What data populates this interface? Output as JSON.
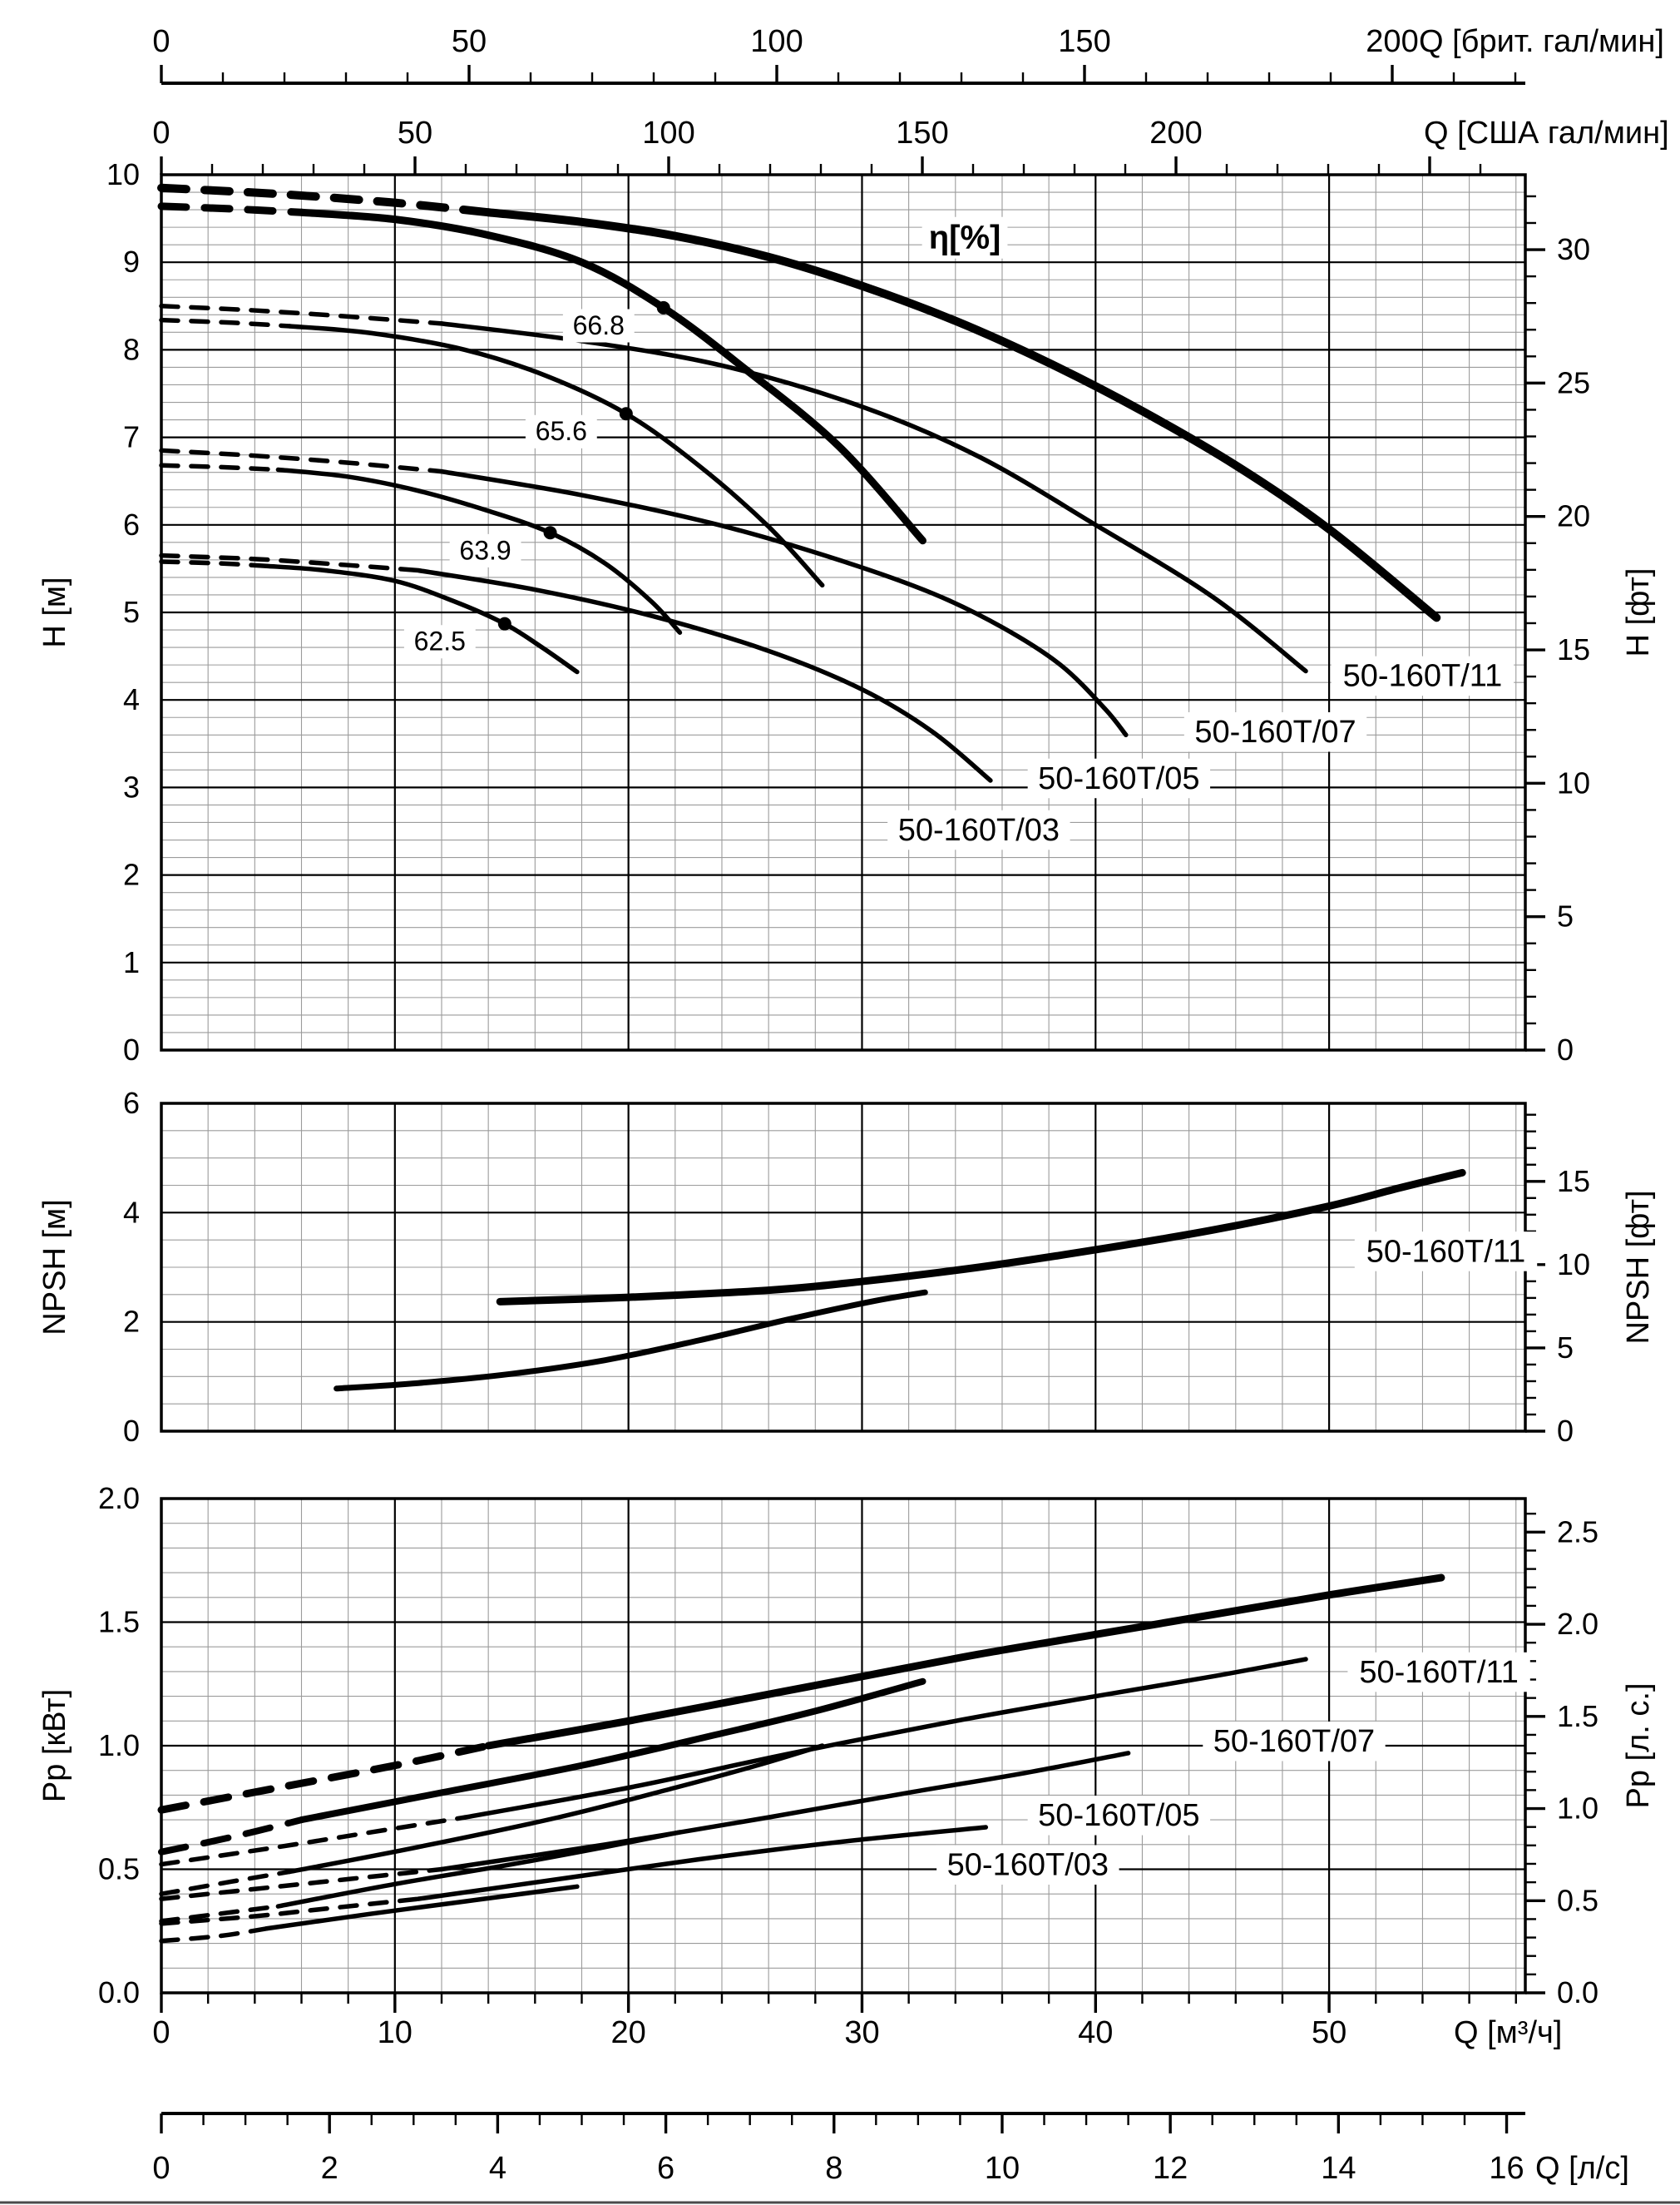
{
  "colors": {
    "curve": "#000000",
    "grid_minor": "#9b9b9b",
    "grid_major": "#000000",
    "frame": "#000000",
    "label_bg": "#ffffff"
  },
  "top_axes": {
    "imp_gpm": {
      "label": "Q [брит. гал/мин]",
      "tick_labels": [
        0,
        50,
        100,
        150,
        200
      ],
      "minor_step": 10
    },
    "us_gpm": {
      "label": "Q [США гал/мин]",
      "tick_labels": [
        0,
        50,
        100,
        150,
        200
      ],
      "minor_step": 10
    }
  },
  "bottom_axes": {
    "m3h": {
      "label": "Q [м³/ч]",
      "tick_labels": [
        0,
        10,
        20,
        30,
        40,
        50
      ],
      "minor_step": 2
    },
    "ls": {
      "label": "Q [л/с]",
      "tick_labels": [
        0,
        2,
        4,
        6,
        8,
        10,
        12,
        14,
        16
      ],
      "minor_step": 0.5
    }
  },
  "chart_data": [
    {
      "id": "head",
      "type": "line",
      "title": "",
      "xlabel": "Q [м³/ч]",
      "ylabel_left": "H [м]",
      "ylabel_right": "H [фт]",
      "xlim": [
        0,
        58.4
      ],
      "ylim": [
        0,
        10
      ],
      "yticks_left": [
        0,
        1,
        2,
        3,
        4,
        5,
        6,
        7,
        8,
        9,
        10
      ],
      "yticks_right_ft": [
        0,
        5,
        10,
        15,
        20,
        25,
        30
      ],
      "grid": {
        "x_minor": 2,
        "x_major": 10,
        "y_minor": 0.2,
        "y_major": 1
      },
      "eta_note": {
        "text": "η[%]",
        "q": 34.4,
        "v": 9.28
      },
      "series": [
        {
          "id": "50-160T/11-nominal",
          "width": 10,
          "dash": [
            [
              0,
              9.85
            ],
            [
              5,
              9.78
            ],
            [
              10,
              9.68
            ],
            [
              14,
              9.57
            ]
          ],
          "solid": [
            [
              14,
              9.57
            ],
            [
              18,
              9.46
            ],
            [
              22,
              9.3
            ],
            [
              26,
              9.06
            ],
            [
              30,
              8.73
            ],
            [
              34,
              8.33
            ],
            [
              38,
              7.85
            ],
            [
              42,
              7.3
            ],
            [
              46,
              6.68
            ],
            [
              50,
              5.95
            ],
            [
              54.6,
              4.94
            ]
          ],
          "label": {
            "text": "50-160T/11",
            "q": 54.0,
            "v": 4.28
          }
        },
        {
          "id": "50-160T/11-duty",
          "width": 9,
          "dash": [
            [
              0,
              9.64
            ],
            [
              3,
              9.61
            ],
            [
              6,
              9.57
            ]
          ],
          "solid": [
            [
              6,
              9.57
            ],
            [
              10,
              9.49
            ],
            [
              14,
              9.31
            ],
            [
              18,
              9.0
            ],
            [
              21.5,
              8.48
            ],
            [
              25,
              7.78
            ],
            [
              29,
              6.9
            ],
            [
              32.6,
              5.82
            ]
          ],
          "bep": {
            "q": 21.5,
            "v": 8.48,
            "value": "66.8"
          }
        },
        {
          "id": "50-160T/07-nominal",
          "width": 5.5,
          "dash": [
            [
              0,
              8.5
            ],
            [
              4,
              8.45
            ],
            [
              8,
              8.38
            ],
            [
              12,
              8.3
            ]
          ],
          "solid": [
            [
              12,
              8.3
            ],
            [
              18,
              8.1
            ],
            [
              24,
              7.82
            ],
            [
              30,
              7.35
            ],
            [
              35,
              6.78
            ],
            [
              40,
              6.0
            ],
            [
              45,
              5.18
            ],
            [
              49,
              4.33
            ]
          ],
          "label": {
            "text": "50-160T/07",
            "q": 47.7,
            "v": 3.64
          }
        },
        {
          "id": "50-160T/07-duty",
          "width": 5.5,
          "dash": [
            [
              0,
              8.34
            ],
            [
              3,
              8.31
            ],
            [
              5.5,
              8.27
            ]
          ],
          "solid": [
            [
              5.5,
              8.27
            ],
            [
              9,
              8.19
            ],
            [
              13,
              8.0
            ],
            [
              16.5,
              7.7
            ],
            [
              19.9,
              7.27
            ],
            [
              23,
              6.68
            ],
            [
              26,
              5.98
            ],
            [
              28.3,
              5.31
            ]
          ],
          "bep": {
            "q": 19.9,
            "v": 7.27,
            "value": "65.6"
          }
        },
        {
          "id": "50-160T/05-nominal",
          "width": 5.5,
          "dash": [
            [
              0,
              6.85
            ],
            [
              4,
              6.79
            ],
            [
              8,
              6.71
            ],
            [
              12,
              6.61
            ]
          ],
          "solid": [
            [
              12,
              6.61
            ],
            [
              18,
              6.34
            ],
            [
              24,
              5.99
            ],
            [
              29,
              5.6
            ],
            [
              33,
              5.22
            ],
            [
              36,
              4.83
            ],
            [
              38.5,
              4.4
            ],
            [
              40.4,
              3.9
            ],
            [
              41.3,
              3.6
            ]
          ],
          "label": {
            "text": "50-160T/05",
            "q": 41.0,
            "v": 3.11
          }
        },
        {
          "id": "50-160T/05-duty",
          "width": 5.5,
          "dash": [
            [
              0,
              6.68
            ],
            [
              2.5,
              6.66
            ],
            [
              5,
              6.63
            ]
          ],
          "solid": [
            [
              5,
              6.63
            ],
            [
              8,
              6.55
            ],
            [
              11,
              6.39
            ],
            [
              14,
              6.16
            ],
            [
              16.65,
              5.91
            ],
            [
              19,
              5.56
            ],
            [
              21,
              5.12
            ],
            [
              22.2,
              4.77
            ]
          ],
          "bep": {
            "q": 16.65,
            "v": 5.91,
            "value": "63.9"
          }
        },
        {
          "id": "50-160T/03-nominal",
          "width": 5.5,
          "dash": [
            [
              0,
              5.65
            ],
            [
              4,
              5.61
            ],
            [
              8,
              5.54
            ],
            [
              11,
              5.48
            ]
          ],
          "solid": [
            [
              11,
              5.48
            ],
            [
              16,
              5.26
            ],
            [
              21,
              4.96
            ],
            [
              26,
              4.56
            ],
            [
              30,
              4.12
            ],
            [
              33,
              3.64
            ],
            [
              35.5,
              3.08
            ]
          ],
          "label": {
            "text": "50-160T/03",
            "q": 35.0,
            "v": 2.52
          }
        },
        {
          "id": "50-160T/03-duty",
          "width": 5.5,
          "dash": [
            [
              0,
              5.58
            ],
            [
              2.5,
              5.56
            ],
            [
              4.5,
              5.53
            ]
          ],
          "solid": [
            [
              4.5,
              5.53
            ],
            [
              7,
              5.48
            ],
            [
              10,
              5.36
            ],
            [
              12.5,
              5.13
            ],
            [
              14.7,
              4.87
            ],
            [
              16.3,
              4.6
            ],
            [
              17.8,
              4.32
            ]
          ],
          "bep": {
            "q": 14.7,
            "v": 4.87,
            "value": "62.5"
          }
        }
      ]
    },
    {
      "id": "npsh",
      "type": "line",
      "title": "",
      "xlabel": "Q [м³/ч]",
      "ylabel_left": "NPSH [м]",
      "ylabel_right": "NPSH [фт]",
      "xlim": [
        0,
        58.4
      ],
      "ylim": [
        0,
        6
      ],
      "yticks_left": [
        0,
        2,
        4,
        6
      ],
      "yticks_right_ft": [
        0,
        5,
        10,
        15
      ],
      "grid": {
        "x_minor": 2,
        "x_major": 10,
        "y_minor": 0.5,
        "y_major": 2
      },
      "series": [
        {
          "id": "50-160T/11-npsh",
          "width": 9,
          "solid": [
            [
              14.5,
              2.37
            ],
            [
              20,
              2.45
            ],
            [
              26,
              2.58
            ],
            [
              30,
              2.74
            ],
            [
              35,
              3.0
            ],
            [
              40,
              3.32
            ],
            [
              45,
              3.68
            ],
            [
              50,
              4.12
            ],
            [
              53,
              4.45
            ],
            [
              55.7,
              4.73
            ]
          ],
          "label": {
            "text": "50-160T/11",
            "q": 55.0,
            "v": 3.3
          }
        },
        {
          "id": "npsh-lower",
          "width": 7,
          "solid": [
            [
              7.5,
              0.78
            ],
            [
              11,
              0.88
            ],
            [
              15,
              1.05
            ],
            [
              19,
              1.3
            ],
            [
              23,
              1.66
            ],
            [
              27,
              2.06
            ],
            [
              30.5,
              2.38
            ],
            [
              32.7,
              2.54
            ]
          ]
        }
      ]
    },
    {
      "id": "power",
      "type": "line",
      "title": "",
      "xlabel": "Q [м³/ч]",
      "ylabel_left": "Pp [кВт]",
      "ylabel_right": "Pp [л. с.]",
      "xlim": [
        0,
        58.4
      ],
      "ylim": [
        0,
        2.0
      ],
      "yticks_left": [
        "0.0",
        "0.5",
        "1.0",
        "1.5",
        "2.0"
      ],
      "yticks_right_hp": [
        "0.0",
        "0.5",
        "1.0",
        "1.5",
        "2.0",
        "2.5"
      ],
      "grid": {
        "x_minor": 2,
        "x_major": 10,
        "y_minor": 0.1,
        "y_major": 0.5
      },
      "series": [
        {
          "id": "50-160T/11-power-nominal",
          "width": 9,
          "dash": [
            [
              0,
              0.74
            ],
            [
              5,
              0.83
            ],
            [
              10,
              0.92
            ],
            [
              14,
              1.0
            ]
          ],
          "solid": [
            [
              14,
              1.0
            ],
            [
              20,
              1.1
            ],
            [
              25,
              1.19
            ],
            [
              30,
              1.28
            ],
            [
              35,
              1.37
            ],
            [
              40,
              1.45
            ],
            [
              45,
              1.53
            ],
            [
              50,
              1.61
            ],
            [
              54.8,
              1.68
            ]
          ],
          "label": {
            "text": "50-160T/11",
            "q": 54.7,
            "v": 1.3
          }
        },
        {
          "id": "50-160T/11-power-duty",
          "width": 8,
          "dash": [
            [
              0,
              0.57
            ],
            [
              3,
              0.63
            ],
            [
              6,
              0.7
            ]
          ],
          "solid": [
            [
              6,
              0.7
            ],
            [
              12,
              0.81
            ],
            [
              18,
              0.92
            ],
            [
              24,
              1.05
            ],
            [
              28,
              1.14
            ],
            [
              32.6,
              1.26
            ]
          ]
        },
        {
          "id": "50-160T/07-power-nominal",
          "width": 5.5,
          "dash": [
            [
              0,
              0.52
            ],
            [
              5,
              0.59
            ],
            [
              9,
              0.65
            ],
            [
              13,
              0.71
            ]
          ],
          "solid": [
            [
              13,
              0.71
            ],
            [
              20,
              0.83
            ],
            [
              27,
              0.97
            ],
            [
              34,
              1.1
            ],
            [
              40,
              1.2
            ],
            [
              45,
              1.28
            ],
            [
              49,
              1.35
            ]
          ],
          "label": {
            "text": "50-160T/07",
            "q": 48.5,
            "v": 1.02
          }
        },
        {
          "id": "50-160T/07-power-duty",
          "width": 5.5,
          "dash": [
            [
              0,
              0.4
            ],
            [
              3,
              0.45
            ],
            [
              5.5,
              0.49
            ]
          ],
          "solid": [
            [
              5.5,
              0.49
            ],
            [
              11,
              0.59
            ],
            [
              17,
              0.71
            ],
            [
              22,
              0.83
            ],
            [
              25.5,
              0.92
            ],
            [
              28.3,
              1.0
            ]
          ]
        },
        {
          "id": "50-160T/05-power-nominal",
          "width": 5.5,
          "dash": [
            [
              0,
              0.38
            ],
            [
              4,
              0.42
            ],
            [
              8,
              0.46
            ],
            [
              12,
              0.5
            ]
          ],
          "solid": [
            [
              12,
              0.5
            ],
            [
              19,
              0.6
            ],
            [
              26,
              0.71
            ],
            [
              32,
              0.81
            ],
            [
              37,
              0.89
            ],
            [
              41.4,
              0.97
            ]
          ],
          "label": {
            "text": "50-160T/05",
            "q": 41.0,
            "v": 0.72
          }
        },
        {
          "id": "50-160T/05-power-duty",
          "width": 5.5,
          "dash": [
            [
              0,
              0.29
            ],
            [
              2.5,
              0.32
            ],
            [
              5,
              0.35
            ]
          ],
          "solid": [
            [
              5,
              0.35
            ],
            [
              10,
              0.44
            ],
            [
              15,
              0.52
            ],
            [
              19,
              0.59
            ],
            [
              22.2,
              0.65
            ]
          ]
        },
        {
          "id": "50-160T/03-power-nominal",
          "width": 5.5,
          "dash": [
            [
              0,
              0.28
            ],
            [
              4,
              0.31
            ],
            [
              7,
              0.34
            ],
            [
              11,
              0.38
            ]
          ],
          "solid": [
            [
              11,
              0.38
            ],
            [
              17,
              0.46
            ],
            [
              23,
              0.54
            ],
            [
              29,
              0.61
            ],
            [
              35.3,
              0.67
            ]
          ],
          "label": {
            "text": "50-160T/03",
            "q": 37.1,
            "v": 0.52
          }
        },
        {
          "id": "50-160T/03-power-duty",
          "width": 5.5,
          "dash": [
            [
              0,
              0.21
            ],
            [
              2.5,
              0.23
            ],
            [
              4.5,
              0.26
            ]
          ],
          "solid": [
            [
              4.5,
              0.26
            ],
            [
              9,
              0.32
            ],
            [
              13,
              0.37
            ],
            [
              17.8,
              0.43
            ]
          ]
        }
      ]
    }
  ]
}
